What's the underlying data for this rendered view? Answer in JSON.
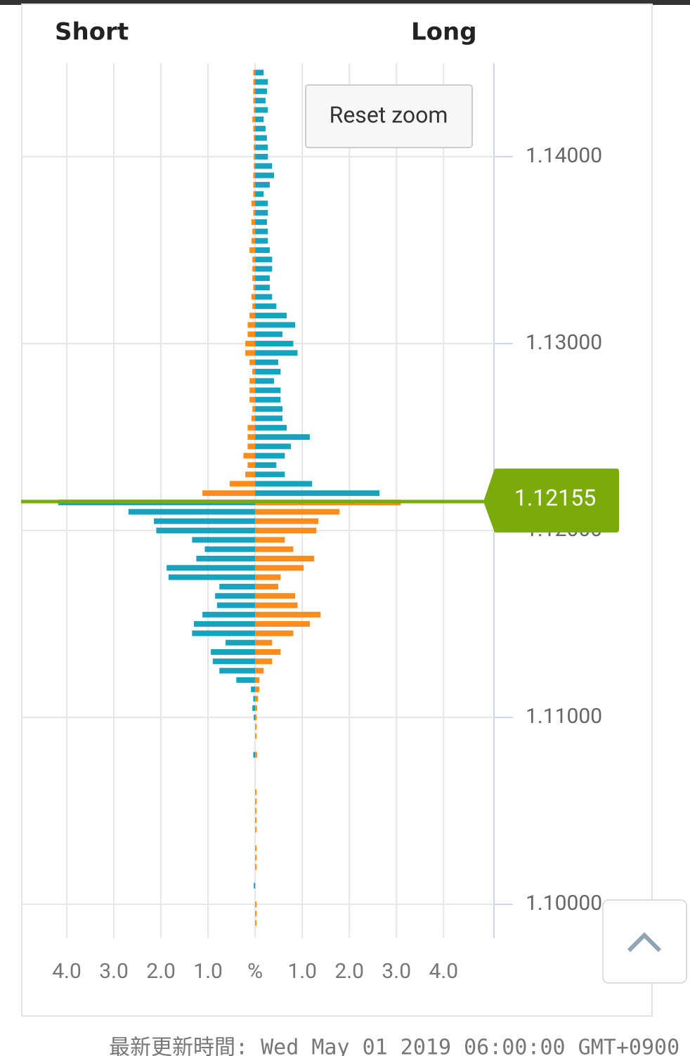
{
  "chart_data": {
    "type": "position-book",
    "short_label": "Short",
    "long_label": "Long",
    "reset_zoom": "Reset zoom",
    "y": [
      1.1445,
      1.144,
      1.1435,
      1.143,
      1.1425,
      1.142,
      1.1415,
      1.141,
      1.1405,
      1.14,
      1.1395,
      1.139,
      1.1385,
      1.138,
      1.1375,
      1.137,
      1.1365,
      1.136,
      1.1355,
      1.135,
      1.1345,
      1.134,
      1.1335,
      1.133,
      1.1325,
      1.132,
      1.1315,
      1.131,
      1.1305,
      1.13,
      1.1295,
      1.129,
      1.1285,
      1.128,
      1.1275,
      1.127,
      1.1265,
      1.126,
      1.1255,
      1.125,
      1.1245,
      1.124,
      1.1235,
      1.123,
      1.1225,
      1.122,
      1.1215,
      1.121,
      1.1205,
      1.12,
      1.1195,
      1.119,
      1.1185,
      1.118,
      1.1175,
      1.117,
      1.1165,
      1.116,
      1.1155,
      1.115,
      1.1145,
      1.114,
      1.1135,
      1.113,
      1.1125,
      1.112,
      1.1115,
      1.111,
      1.1105,
      1.11,
      1.1095,
      1.109,
      1.1085,
      1.108,
      1.1075,
      1.107,
      1.1065,
      1.106,
      1.1055,
      1.105,
      1.1045,
      1.104,
      1.1035,
      1.103,
      1.1025,
      1.102,
      1.1015,
      1.101,
      1.1005,
      1.1,
      1.0995,
      1.099
    ],
    "series": [
      {
        "color_above": "#ff8c1a",
        "color_below": "#15a3bf",
        "values": [
          -0.04,
          -0.04,
          -0.04,
          -0.04,
          -0.03,
          -0.06,
          -0.04,
          -0.03,
          -0.03,
          -0.03,
          -0.03,
          -0.04,
          -0.04,
          -0.04,
          -0.08,
          -0.04,
          -0.08,
          -0.06,
          -0.08,
          -0.12,
          -0.06,
          -0.06,
          -0.06,
          -0.04,
          -0.08,
          -0.06,
          -0.12,
          -0.16,
          -0.16,
          -0.21,
          -0.21,
          -0.12,
          -0.06,
          -0.12,
          -0.12,
          -0.12,
          -0.06,
          -0.08,
          -0.16,
          -0.16,
          -0.16,
          -0.25,
          -0.16,
          -0.21,
          -0.54,
          -1.12,
          -4.18,
          -2.69,
          -2.15,
          -2.1,
          -1.34,
          -1.07,
          -1.25,
          -1.88,
          -1.84,
          -0.76,
          -0.85,
          -0.81,
          -1.12,
          -1.3,
          -1.34,
          -0.63,
          -0.94,
          -0.9,
          -0.76,
          -0.4,
          -0.09,
          -0.04,
          -0.06,
          -0.03,
          0,
          0,
          0,
          -0.04,
          0,
          0,
          0,
          0,
          0,
          0,
          0,
          0,
          0,
          0,
          0,
          0,
          0,
          -0.03,
          0,
          0,
          0,
          0
        ]
      },
      {
        "color_above": "#15a3bf",
        "color_below": "#ff8c1a",
        "values": [
          0.18,
          0.27,
          0.25,
          0.22,
          0.27,
          0.18,
          0.22,
          0.25,
          0.27,
          0.27,
          0.36,
          0.4,
          0.31,
          0.18,
          0.27,
          0.27,
          0.25,
          0.27,
          0.27,
          0.31,
          0.36,
          0.36,
          0.31,
          0.31,
          0.36,
          0.45,
          0.67,
          0.85,
          0.58,
          0.81,
          0.9,
          0.49,
          0.54,
          0.4,
          0.54,
          0.54,
          0.58,
          0.58,
          0.67,
          1.16,
          0.76,
          0.63,
          0.45,
          0.63,
          1.21,
          2.64,
          3.09,
          1.79,
          1.34,
          1.3,
          0.63,
          0.81,
          1.25,
          1.03,
          0.54,
          0.49,
          0.85,
          0.9,
          1.39,
          1.16,
          0.81,
          0.36,
          0.54,
          0.36,
          0.18,
          0.09,
          0.09,
          0.06,
          0.04,
          0.03,
          0.03,
          0.03,
          0,
          0.04,
          0,
          0,
          0,
          0.03,
          0.03,
          0.03,
          0.03,
          0.03,
          0,
          0.03,
          0.03,
          0.03,
          0,
          0,
          0,
          0.03,
          0.03,
          0.03
        ]
      }
    ],
    "current_price": 1.12155,
    "current_color": "#7aab0a",
    "xlim": [
      -4.97,
      5.07
    ],
    "xticks": [
      {
        "value": -4,
        "label": "4.0"
      },
      {
        "value": -3,
        "label": "3.0"
      },
      {
        "value": -2,
        "label": "2.0"
      },
      {
        "value": -1,
        "label": "1.0"
      },
      {
        "value": 0,
        "label": "%"
      },
      {
        "value": 1,
        "label": "1.0"
      },
      {
        "value": 2,
        "label": "2.0"
      },
      {
        "value": 3,
        "label": "3.0"
      },
      {
        "value": 4,
        "label": "4.0"
      }
    ],
    "ylim": [
      1.0982,
      1.145
    ],
    "yticks": [
      {
        "value": 1.1,
        "label": "1.10000"
      },
      {
        "value": 1.11,
        "label": "1.11000"
      },
      {
        "value": 1.12,
        "label": "1.12000"
      },
      {
        "value": 1.13,
        "label": "1.13000"
      },
      {
        "value": 1.14,
        "label": "1.14000"
      }
    ],
    "grid": true
  },
  "footer": "最新更新時間: Wed May 01 2019 06:00:00 GMT+0900"
}
